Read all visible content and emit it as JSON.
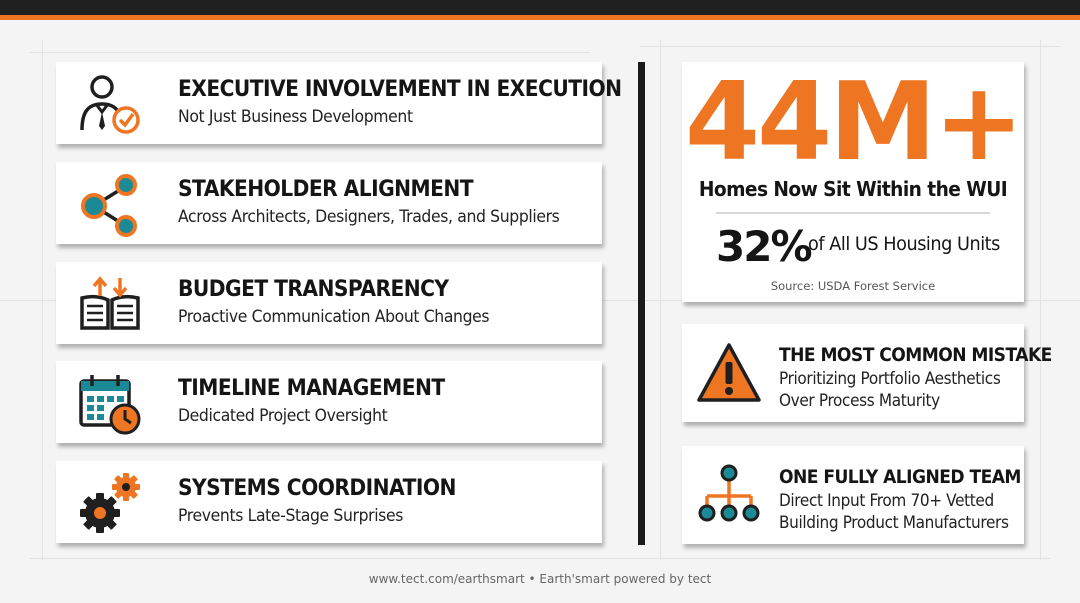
{
  "colors": {
    "accent": "#ee7623",
    "dark": "#1f1f1f",
    "teal": "#1a8a96",
    "card": "#ffffff",
    "background": "#f4f4f4"
  },
  "features": [
    {
      "title": "EXECUTIVE INVOLVEMENT IN EXECUTION",
      "subtitle": "Not Just Business Development",
      "icon": "executive-checkmark-icon"
    },
    {
      "title": "STAKEHOLDER ALIGNMENT",
      "subtitle": "Across Architects, Designers, Trades, and Suppliers",
      "icon": "share-network-icon"
    },
    {
      "title": "BUDGET TRANSPARENCY",
      "subtitle": "Proactive Communication About Changes",
      "icon": "open-book-arrows-icon"
    },
    {
      "title": "TIMELINE MANAGEMENT",
      "subtitle": "Dedicated Project Oversight",
      "icon": "calendar-clock-icon"
    },
    {
      "title": "SYSTEMS COORDINATION",
      "subtitle": "Prevents Late-Stage Surprises",
      "icon": "gears-icon"
    }
  ],
  "stat": {
    "big_number": "44M+",
    "big_caption": "Homes Now Sit Within the WUI",
    "percent": "32%",
    "percent_caption": "of All US Housing Units",
    "source": "Source: USDA Forest Service"
  },
  "callouts": [
    {
      "title": "THE MOST COMMON MISTAKE",
      "line1": "Prioritizing Portfolio Aesthetics",
      "line2": "Over Process Maturity",
      "icon": "warning-triangle-icon"
    },
    {
      "title": "ONE FULLY ALIGNED TEAM",
      "line1": "Direct Input From 70+ Vetted",
      "line2": "Building Product Manufacturers",
      "icon": "org-chart-icon"
    }
  ],
  "footer": "www.tect.com/earthsmart  •  Earth'smart powered by tect"
}
